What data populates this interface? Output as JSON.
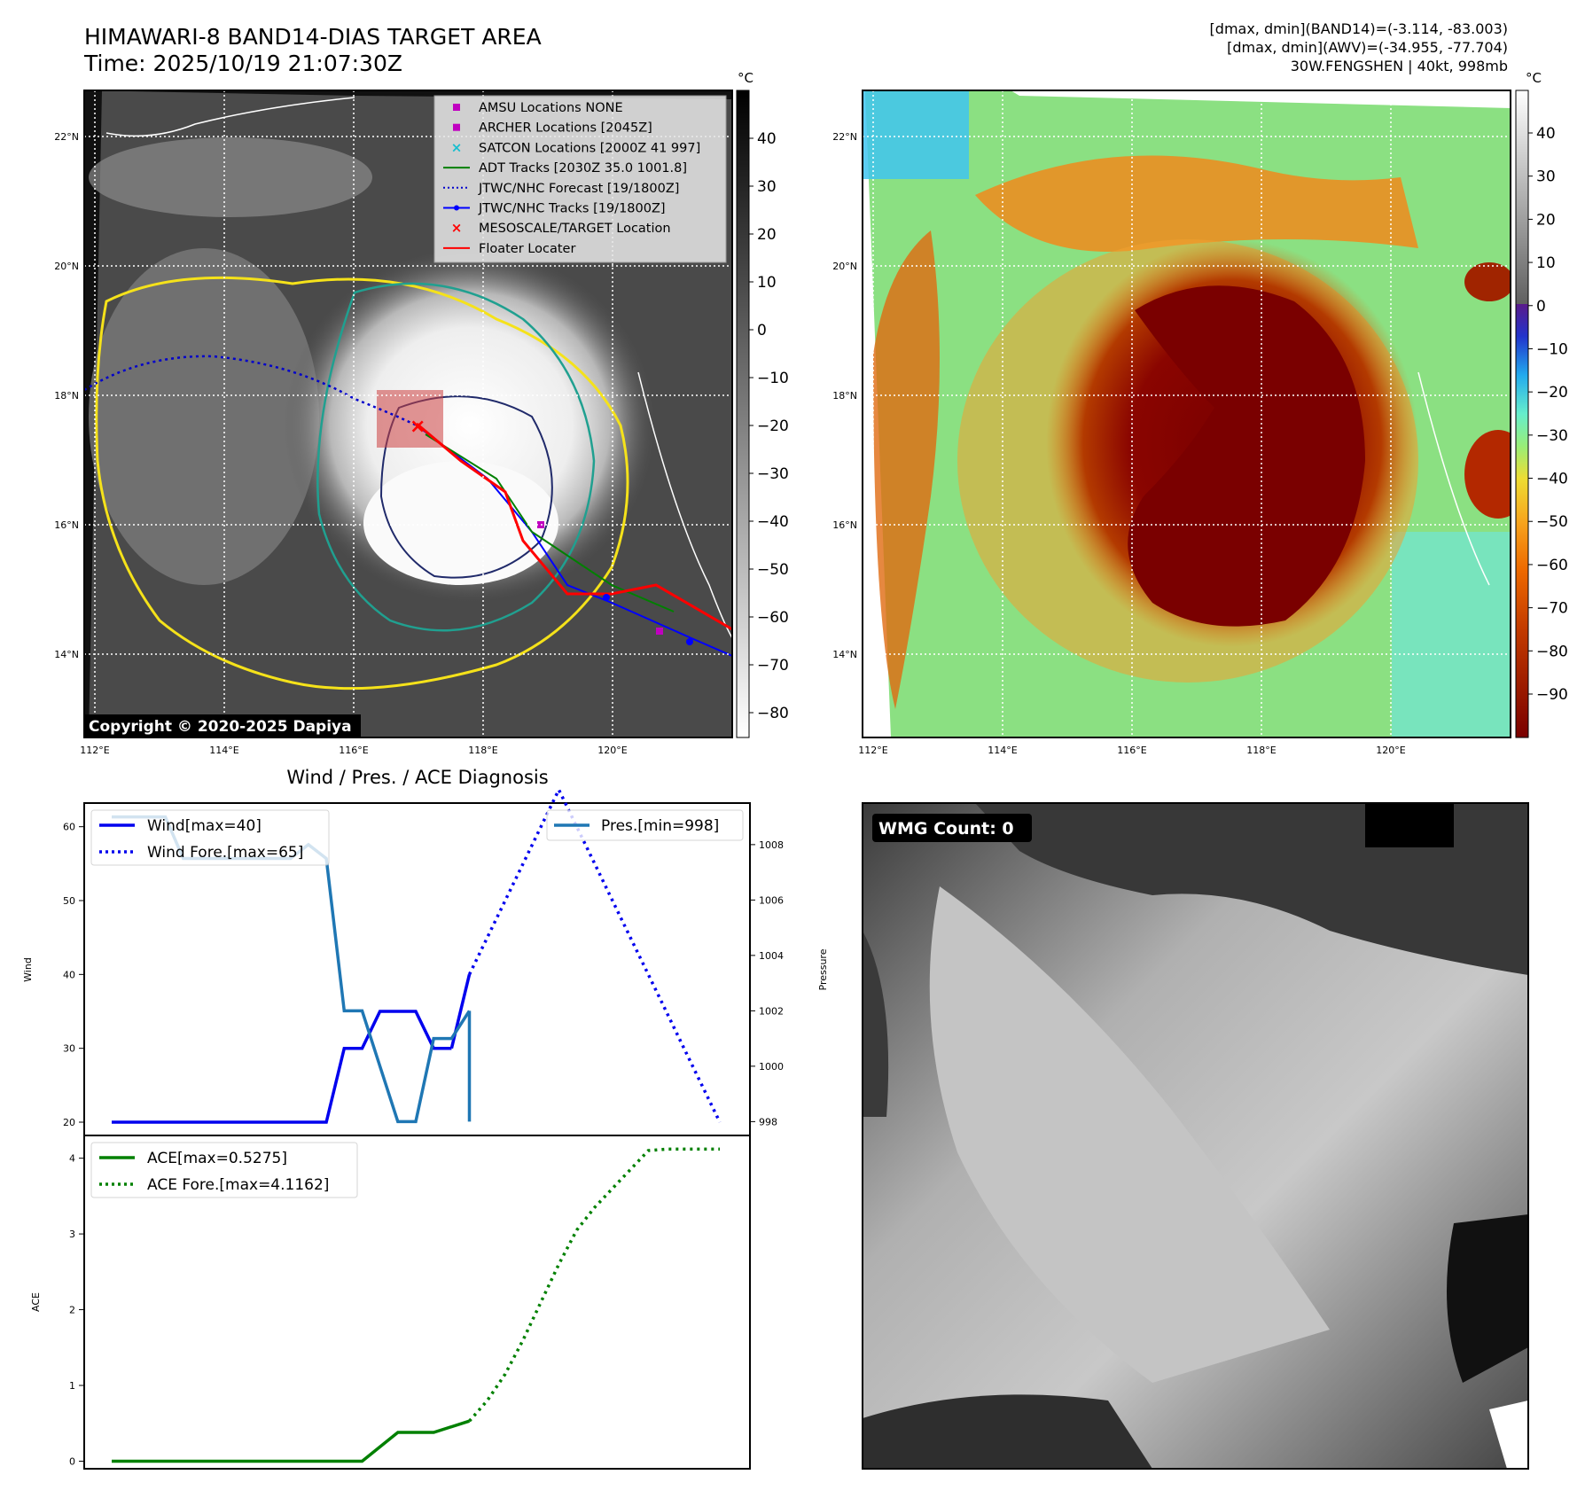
{
  "header": {
    "title": "HIMAWARI-8 BAND14-DIAS TARGET AREA",
    "time": "Time: 2025/10/19 21:07:30Z",
    "info_lines": [
      "[dmax, dmin](BAND14)=(-3.114, -83.003)",
      "[dmax, dmin](AWV)=(-34.955, -77.704)",
      "30W.FENGSHEN | 40kt, 998mb"
    ]
  },
  "map_left": {
    "lon_ticks": [
      "112°E",
      "114°E",
      "116°E",
      "118°E",
      "120°E"
    ],
    "lat_ticks": [
      "22°N",
      "20°N",
      "18°N",
      "16°N",
      "14°N"
    ],
    "copyright": "Copyright © 2020-2025 Dapiya",
    "colorbar": {
      "unit": "°C",
      "ticks": [
        "40",
        "30",
        "20",
        "10",
        "0",
        "−10",
        "−20",
        "−30",
        "−40",
        "−50",
        "−60",
        "−70",
        "−80"
      ]
    },
    "legend": [
      {
        "label": "AMSU Locations NONE",
        "marker": "square",
        "color": "#c000c0"
      },
      {
        "label": "ARCHER Locations [2045Z]",
        "marker": "square",
        "color": "#c000c0"
      },
      {
        "label": "SATCON Locations [2000Z 41 997]",
        "marker": "x",
        "color": "#17becf"
      },
      {
        "label": "ADT Tracks [2030Z 35.0 1001.8]",
        "marker": "line",
        "color": "#008000"
      },
      {
        "label": "JTWC/NHC Forecast [19/1800Z]",
        "marker": "dotted",
        "color": "#0000cc"
      },
      {
        "label": "JTWC/NHC Tracks [19/1800Z]",
        "marker": "line-dot",
        "color": "#0000ff"
      },
      {
        "label": "MESOSCALE/TARGET Location",
        "marker": "x",
        "color": "#ff0000"
      },
      {
        "label": "Floater Locater",
        "marker": "line",
        "color": "#ff0000"
      }
    ]
  },
  "map_right": {
    "lon_ticks": [
      "112°E",
      "114°E",
      "116°E",
      "118°E",
      "120°E"
    ],
    "lat_ticks": [
      "22°N",
      "20°N",
      "18°N",
      "16°N",
      "14°N"
    ],
    "colorbar": {
      "unit": "°C",
      "ticks": [
        "40",
        "30",
        "20",
        "10",
        "0",
        "−10",
        "−20",
        "−30",
        "−40",
        "−50",
        "−60",
        "−70",
        "−80",
        "−90"
      ]
    }
  },
  "wmg": {
    "label": "WMG Count: 0"
  },
  "chart_data": [
    {
      "type": "line",
      "title": "Wind / Pres. / ACE Diagnosis",
      "ylabel": "Wind",
      "y2label": "Pressure",
      "x": [
        0,
        1,
        2,
        3,
        4,
        5,
        6,
        7,
        8,
        9,
        10,
        11,
        12,
        13,
        14,
        15,
        16,
        17,
        18,
        19,
        20,
        21,
        22,
        23,
        24,
        25,
        26,
        27,
        28,
        29,
        30,
        31,
        32,
        33,
        34
      ],
      "ylim": [
        20,
        65
      ],
      "y2lim": [
        997.5,
        1009.5
      ],
      "yticks": [
        "20",
        "30",
        "40",
        "50",
        "60"
      ],
      "y2ticks": [
        "998",
        "1000",
        "1002",
        "1004",
        "1006",
        "1008"
      ],
      "legend_left": [
        "Wind[max=40]",
        "Wind Fore.[max=65]"
      ],
      "legend_right": [
        "Pres.[min=998]"
      ],
      "series": [
        {
          "name": "Wind[max=40]",
          "style": "solid",
          "color": "#0000ee",
          "x": [
            0,
            12,
            13,
            14,
            15,
            16,
            17,
            18,
            19
          ],
          "values": [
            20,
            20,
            30,
            30,
            35,
            35,
            35,
            30,
            30
          ]
        },
        {
          "name": "Wind[max=40]",
          "style": "solid",
          "color": "#0000ee",
          "x": [
            19,
            20
          ],
          "values": [
            30,
            40
          ]
        },
        {
          "name": "Wind Fore.[max=65]",
          "style": "dotted",
          "color": "#0000ee",
          "x": [
            20,
            21,
            22,
            23,
            24,
            25,
            26,
            27,
            28,
            29,
            30,
            31,
            32,
            33,
            34
          ],
          "values": [
            40,
            45,
            50,
            55,
            60,
            65,
            60,
            55,
            50,
            45,
            40,
            35,
            30,
            25,
            20
          ]
        },
        {
          "name": "Pres.[min=998]",
          "axis": "right",
          "style": "solid",
          "color": "#1f77b4",
          "x": [
            0,
            3,
            4,
            5,
            6,
            7,
            8,
            9,
            10,
            11,
            12,
            13,
            14,
            15,
            16,
            17,
            18,
            19,
            20
          ],
          "values": [
            1009,
            1009,
            1007.5,
            1007.5,
            1007.5,
            1007.5,
            1007.5,
            1007.5,
            1007.5,
            1008,
            1007.5,
            1002,
            1002,
            1000,
            998,
            998,
            1001,
            1001,
            1002
          ]
        },
        {
          "name": "Pres.[min=998]",
          "axis": "right",
          "style": "solid",
          "color": "#1f77b4",
          "x": [
            20
          ],
          "values": [
            998
          ]
        }
      ]
    },
    {
      "type": "line",
      "ylabel": "ACE",
      "x": [
        0,
        1,
        2,
        3,
        4,
        5,
        6,
        7,
        8,
        9,
        10,
        11,
        12,
        13,
        14,
        15,
        16,
        17,
        18,
        19,
        20,
        21,
        22,
        23,
        24,
        25,
        26,
        27,
        28,
        29,
        30,
        31,
        32,
        33,
        34
      ],
      "ylim": [
        -0.1,
        4.3
      ],
      "yticks": [
        "0",
        "1",
        "2",
        "3",
        "4"
      ],
      "legend": [
        "ACE[max=0.5275]",
        "ACE Fore.[max=4.1162]"
      ],
      "series": [
        {
          "name": "ACE[max=0.5275]",
          "style": "solid",
          "color": "#008000",
          "x": [
            0,
            12,
            14,
            16,
            18,
            20
          ],
          "values": [
            0,
            0,
            0,
            0.38,
            0.38,
            0.53
          ]
        },
        {
          "name": "ACE Fore.[max=4.1162]",
          "style": "dotted",
          "color": "#008000",
          "x": [
            20,
            21,
            22,
            23,
            24,
            25,
            26,
            27,
            28,
            29,
            30,
            31,
            32,
            33,
            34
          ],
          "values": [
            0.53,
            0.8,
            1.15,
            1.6,
            2.1,
            2.6,
            3.05,
            3.35,
            3.6,
            3.85,
            4.1,
            4.12,
            4.12,
            4.12,
            4.12
          ]
        }
      ]
    }
  ]
}
